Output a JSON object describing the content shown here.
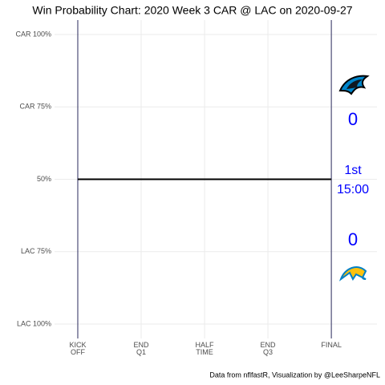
{
  "chart_data": {
    "type": "line",
    "title": "Win Probability Chart: 2020 Week 3 CAR @ LAC on 2020-09-27",
    "caption": "Data from nflfastR, Visualization by @LeeSharpeNFL",
    "x": [
      0,
      60
    ],
    "series": [
      {
        "name": "Win Probability",
        "color": "#000000",
        "values": [
          50,
          50
        ]
      }
    ],
    "xlim": [
      -5.5,
      70.8
    ],
    "xticks": [
      {
        "value": 0,
        "label": "KICK\nOFF"
      },
      {
        "value": 15,
        "label": "END\nQ1"
      },
      {
        "value": 30,
        "label": "HALF\nTIME"
      },
      {
        "value": 45,
        "label": "END\nQ3"
      },
      {
        "value": 60,
        "label": "FINAL"
      }
    ],
    "ylim": [
      -5,
      105
    ],
    "yticks": [
      {
        "value": 100,
        "label": "CAR 100%"
      },
      {
        "value": 75,
        "label": "CAR 75%"
      },
      {
        "value": 50,
        "label": "50%"
      },
      {
        "value": 25,
        "label": "LAC 75%"
      },
      {
        "value": 0,
        "label": "LAC 100%"
      }
    ],
    "grid": true,
    "away_score": "0",
    "home_score": "0",
    "quarter": "1st",
    "clock": "15:00",
    "score_color": "#0000ff"
  }
}
